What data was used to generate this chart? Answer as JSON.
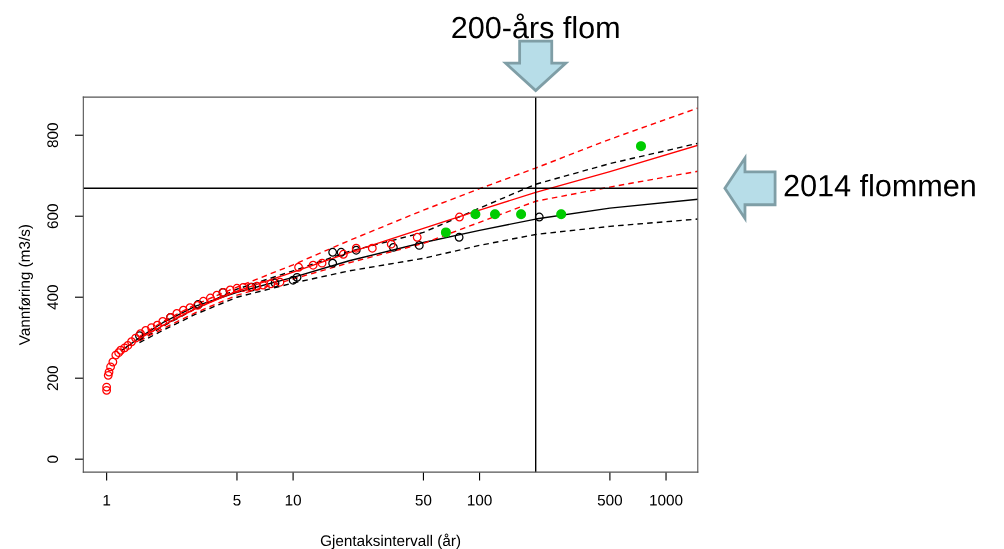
{
  "chart_data": {
    "type": "scatter",
    "xlabel": "Gjentaksintervall (år)",
    "ylabel": "Vannføring (m3/s)",
    "log": "x",
    "xlim": [
      0.75,
      1480
    ],
    "ylim": [
      -32,
      894
    ],
    "xticks": [
      1,
      5,
      10,
      50,
      100,
      500,
      1000
    ],
    "yticks": [
      0,
      200,
      400,
      600,
      800
    ],
    "grid": false,
    "ref_lines": [
      {
        "axis": "x",
        "value": 200,
        "label": "200-års flom",
        "color": "#000000"
      },
      {
        "axis": "y",
        "value": 669,
        "label": "2014 flommen",
        "color": "#000000"
      }
    ],
    "series": [
      {
        "type": "line",
        "color": "#000000",
        "line_style": "solid",
        "x": [
          1.2,
          1.5,
          2,
          3,
          5,
          10,
          20,
          50,
          100,
          200,
          500,
          1480
        ],
        "values": [
          268,
          300,
          337,
          378,
          412,
          449,
          490,
          535,
          565,
          593,
          620,
          642
        ]
      },
      {
        "type": "line",
        "color": "#000000",
        "line_style": "dashed",
        "x": [
          1.5,
          2,
          3,
          5,
          10,
          20,
          50,
          100,
          200,
          500,
          1480
        ],
        "values": [
          292,
          328,
          372,
          420,
          465,
          513,
          560,
          620,
          679,
          730,
          780
        ]
      },
      {
        "type": "line",
        "color": "#000000",
        "line_style": "dashed",
        "x": [
          1.5,
          2,
          3,
          5,
          10,
          20,
          50,
          100,
          200,
          500,
          1480
        ],
        "values": [
          288,
          318,
          358,
          400,
          435,
          465,
          496,
          528,
          555,
          575,
          593
        ]
      },
      {
        "type": "line",
        "color": "#ff0000",
        "line_style": "solid",
        "x": [
          1.5,
          2,
          3,
          5,
          10,
          20,
          50,
          100,
          200,
          500,
          1480
        ],
        "values": [
          298,
          330,
          372,
          415,
          462,
          510,
          570,
          615,
          659,
          710,
          775
        ]
      },
      {
        "type": "line",
        "color": "#ff0000",
        "line_style": "dashed",
        "x": [
          1.5,
          2,
          3,
          5,
          10,
          20,
          50,
          100,
          200,
          500,
          1480
        ],
        "values": [
          303,
          340,
          382,
          425,
          480,
          540,
          615,
          668,
          719,
          790,
          867
        ]
      },
      {
        "type": "line",
        "color": "#ff0000",
        "line_style": "dashed",
        "x": [
          1.5,
          2,
          3,
          5,
          10,
          20,
          50,
          100,
          200,
          500,
          1480
        ],
        "values": [
          293,
          322,
          362,
          405,
          445,
          485,
          533,
          585,
          637,
          672,
          711
        ]
      },
      {
        "type": "scatter",
        "color": "#000000",
        "marker": "circle",
        "x": [
          1.5,
          2.2,
          3.1,
          4.2,
          6.0,
          8.0,
          10,
          10.5,
          16.3,
          16.3,
          18.1,
          21.8,
          34.5,
          47.5,
          77.7,
          209
        ],
        "values": [
          305,
          350,
          382,
          412,
          425,
          435,
          442,
          449,
          484,
          511,
          511,
          516,
          523,
          528,
          548,
          598
        ]
      },
      {
        "type": "scatter",
        "color": "#ff0000",
        "marker": "circle",
        "x": [
          1.0,
          1.0,
          1.02,
          1.03,
          1.05,
          1.08,
          1.12,
          1.16,
          1.19,
          1.25,
          1.3,
          1.36,
          1.43,
          1.52,
          1.62,
          1.74,
          1.87,
          2.0,
          2.2,
          2.38,
          2.58,
          2.8,
          3.07,
          3.3,
          3.6,
          3.9,
          4.23,
          4.6,
          5.0,
          5.4,
          5.9,
          6.4,
          6.9,
          7.6,
          8.5,
          10.7,
          12.8,
          14.3,
          18.6,
          21.8,
          26.6,
          33.6,
          46.3,
          78
        ],
        "values": [
          170,
          178,
          207,
          215,
          228,
          240,
          257,
          263,
          269,
          275,
          281,
          290,
          299,
          310,
          318,
          325,
          331,
          340,
          350,
          360,
          368,
          374,
          380,
          390,
          398,
          405,
          412,
          418,
          422,
          424,
          425,
          427,
          430,
          433,
          437,
          474,
          479,
          484,
          506,
          521,
          521,
          531,
          548,
          598
        ]
      },
      {
        "type": "scatter",
        "color": "#00cc00",
        "marker": "circle",
        "x": [
          66,
          95,
          121,
          167,
          274,
          734
        ],
        "values": [
          560,
          605,
          605,
          605,
          605,
          773
        ]
      }
    ]
  }
}
